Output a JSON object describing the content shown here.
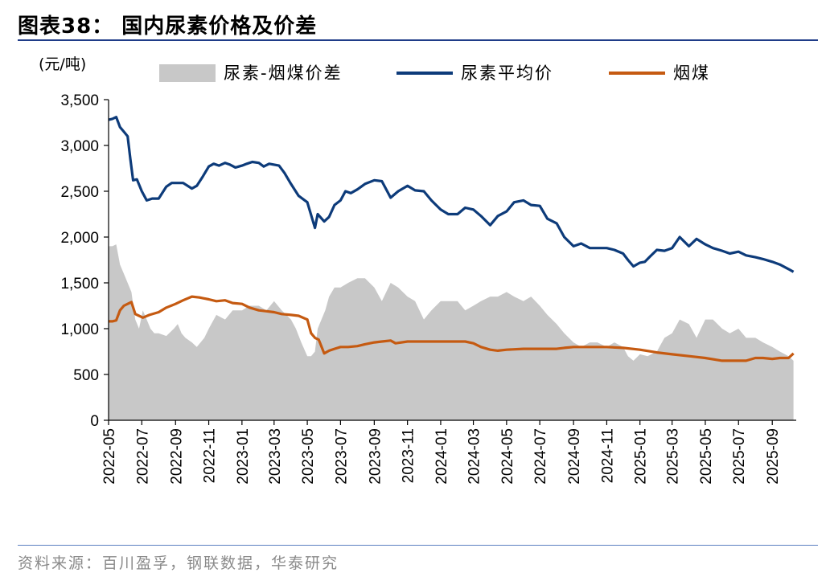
{
  "title": "图表38： 国内尿素价格及价差",
  "source": "资料来源：百川盈孚，钢联数据，华泰研究",
  "colors": {
    "spread": "#c8c8c8",
    "urea": "#0d3b7a",
    "coal": "#c55a11",
    "rule": "#1f3c88"
  },
  "chart_data": {
    "type": "line",
    "ylabel": "(元/吨)",
    "ylim": [
      0,
      3500
    ],
    "yticks": [
      0,
      500,
      1000,
      1500,
      2000,
      2500,
      3000,
      3500
    ],
    "ytick_labels": [
      "0",
      "500",
      "1,000",
      "1,500",
      "2,000",
      "2,500",
      "3,000",
      "3,500"
    ],
    "xlim": [
      "2022-05-01",
      "2025-10-15"
    ],
    "xtick_labels": [
      "2022-05",
      "2022-07",
      "2022-09",
      "2022-11",
      "2023-01",
      "2023-03",
      "2023-05",
      "2023-07",
      "2023-09",
      "2023-11",
      "2024-01",
      "2024-03",
      "2024-05",
      "2024-07",
      "2024-09",
      "2024-11",
      "2025-01",
      "2025-03",
      "2025-05",
      "2025-07",
      "2025-09"
    ],
    "legend_position": "top",
    "series": [
      {
        "name": "尿素-烟煤价差",
        "kind": "area",
        "x": [
          "2022-05-01",
          "2022-05-08",
          "2022-05-15",
          "2022-05-22",
          "2022-05-29",
          "2022-06-05",
          "2022-06-12",
          "2022-06-19",
          "2022-06-26",
          "2022-07-03",
          "2022-07-10",
          "2022-07-17",
          "2022-07-24",
          "2022-08-01",
          "2022-08-15",
          "2022-08-29",
          "2022-09-05",
          "2022-09-12",
          "2022-09-19",
          "2022-10-01",
          "2022-10-10",
          "2022-10-17",
          "2022-10-24",
          "2022-11-01",
          "2022-11-15",
          "2022-12-01",
          "2022-12-15",
          "2023-01-01",
          "2023-01-15",
          "2023-02-01",
          "2023-02-15",
          "2023-03-01",
          "2023-03-15",
          "2023-04-01",
          "2023-04-10",
          "2023-04-20",
          "2023-05-01",
          "2023-05-08",
          "2023-05-15",
          "2023-05-20",
          "2023-05-27",
          "2023-06-03",
          "2023-06-10",
          "2023-06-20",
          "2023-07-01",
          "2023-07-15",
          "2023-08-01",
          "2023-08-15",
          "2023-09-01",
          "2023-09-15",
          "2023-10-01",
          "2023-10-15",
          "2023-11-01",
          "2023-11-15",
          "2023-12-01",
          "2023-12-15",
          "2024-01-01",
          "2024-01-15",
          "2024-02-01",
          "2024-02-15",
          "2024-03-01",
          "2024-03-15",
          "2024-04-01",
          "2024-04-15",
          "2024-05-01",
          "2024-05-15",
          "2024-06-01",
          "2024-06-15",
          "2024-07-01",
          "2024-07-15",
          "2024-08-01",
          "2024-08-15",
          "2024-09-01",
          "2024-09-15",
          "2024-10-01",
          "2024-10-15",
          "2024-11-01",
          "2024-11-15",
          "2024-12-01",
          "2024-12-10",
          "2024-12-20",
          "2025-01-01",
          "2025-01-15",
          "2025-02-01",
          "2025-02-15",
          "2025-03-01",
          "2025-03-15",
          "2025-04-01",
          "2025-04-15",
          "2025-05-01",
          "2025-05-15",
          "2025-06-01",
          "2025-06-15",
          "2025-07-01",
          "2025-07-15",
          "2025-08-01",
          "2025-08-15",
          "2025-09-01",
          "2025-09-15",
          "2025-10-01",
          "2025-10-10"
        ],
        "y": [
          1900,
          1900,
          1920,
          1700,
          1600,
          1500,
          1400,
          1100,
          1000,
          1200,
          1100,
          1000,
          950,
          950,
          920,
          1000,
          1050,
          950,
          900,
          850,
          800,
          850,
          900,
          1000,
          1150,
          1100,
          1200,
          1200,
          1250,
          1250,
          1200,
          1300,
          1200,
          1100,
          1000,
          850,
          700,
          700,
          750,
          1000,
          1100,
          1200,
          1350,
          1450,
          1450,
          1500,
          1550,
          1550,
          1450,
          1300,
          1500,
          1450,
          1350,
          1300,
          1100,
          1200,
          1300,
          1300,
          1300,
          1200,
          1250,
          1300,
          1350,
          1350,
          1400,
          1350,
          1300,
          1350,
          1250,
          1150,
          1050,
          950,
          850,
          800,
          850,
          850,
          800,
          850,
          800,
          700,
          650,
          720,
          700,
          750,
          900,
          950,
          1100,
          1050,
          900,
          1100,
          1100,
          1000,
          950,
          1000,
          900,
          900,
          850,
          800,
          750,
          700,
          650
        ]
      },
      {
        "name": "尿素平均价",
        "kind": "line",
        "x": [
          "2022-05-01",
          "2022-05-08",
          "2022-05-15",
          "2022-05-22",
          "2022-05-29",
          "2022-06-05",
          "2022-06-10",
          "2022-06-15",
          "2022-06-22",
          "2022-07-01",
          "2022-07-10",
          "2022-07-20",
          "2022-08-01",
          "2022-08-15",
          "2022-08-25",
          "2022-09-05",
          "2022-09-15",
          "2022-10-01",
          "2022-10-10",
          "2022-10-20",
          "2022-11-01",
          "2022-11-10",
          "2022-11-20",
          "2022-12-01",
          "2022-12-10",
          "2022-12-20",
          "2023-01-01",
          "2023-01-10",
          "2023-01-20",
          "2023-02-01",
          "2023-02-10",
          "2023-02-20",
          "2023-03-01",
          "2023-03-10",
          "2023-03-20",
          "2023-04-01",
          "2023-04-15",
          "2023-05-01",
          "2023-05-10",
          "2023-05-15",
          "2023-05-20",
          "2023-06-01",
          "2023-06-10",
          "2023-06-20",
          "2023-07-01",
          "2023-07-10",
          "2023-07-20",
          "2023-08-01",
          "2023-08-15",
          "2023-09-01",
          "2023-09-15",
          "2023-10-01",
          "2023-10-15",
          "2023-11-01",
          "2023-11-15",
          "2023-12-01",
          "2023-12-15",
          "2024-01-01",
          "2024-01-15",
          "2024-02-01",
          "2024-02-15",
          "2024-03-01",
          "2024-03-15",
          "2024-04-01",
          "2024-04-15",
          "2024-05-01",
          "2024-05-15",
          "2024-06-01",
          "2024-06-15",
          "2024-07-01",
          "2024-07-15",
          "2024-08-01",
          "2024-08-15",
          "2024-09-01",
          "2024-09-15",
          "2024-10-01",
          "2024-10-15",
          "2024-11-01",
          "2024-11-15",
          "2024-12-01",
          "2024-12-10",
          "2024-12-20",
          "2025-01-01",
          "2025-01-10",
          "2025-01-20",
          "2025-02-01",
          "2025-02-15",
          "2025-03-01",
          "2025-03-15",
          "2025-04-01",
          "2025-04-15",
          "2025-05-01",
          "2025-05-15",
          "2025-06-01",
          "2025-06-15",
          "2025-07-01",
          "2025-07-15",
          "2025-08-01",
          "2025-08-15",
          "2025-09-01",
          "2025-09-15",
          "2025-10-01",
          "2025-10-10"
        ],
        "y": [
          3280,
          3290,
          3310,
          3200,
          3150,
          3100,
          2850,
          2620,
          2630,
          2500,
          2400,
          2420,
          2420,
          2550,
          2590,
          2590,
          2590,
          2530,
          2560,
          2650,
          2770,
          2800,
          2780,
          2810,
          2790,
          2760,
          2780,
          2800,
          2820,
          2810,
          2770,
          2800,
          2790,
          2780,
          2700,
          2580,
          2450,
          2380,
          2200,
          2100,
          2250,
          2170,
          2220,
          2350,
          2400,
          2500,
          2480,
          2520,
          2580,
          2620,
          2610,
          2430,
          2500,
          2560,
          2510,
          2500,
          2400,
          2300,
          2250,
          2250,
          2320,
          2300,
          2230,
          2130,
          2230,
          2280,
          2380,
          2400,
          2350,
          2340,
          2200,
          2150,
          2000,
          1900,
          1930,
          1880,
          1880,
          1880,
          1860,
          1820,
          1750,
          1680,
          1720,
          1730,
          1790,
          1860,
          1850,
          1880,
          2000,
          1900,
          1980,
          1920,
          1880,
          1850,
          1820,
          1840,
          1800,
          1780,
          1760,
          1730,
          1700,
          1650,
          1620
        ]
      },
      {
        "name": "烟煤",
        "kind": "line",
        "x": [
          "2022-05-01",
          "2022-05-08",
          "2022-05-15",
          "2022-05-22",
          "2022-05-29",
          "2022-06-05",
          "2022-06-12",
          "2022-06-19",
          "2022-06-26",
          "2022-07-03",
          "2022-07-15",
          "2022-08-01",
          "2022-08-15",
          "2022-09-01",
          "2022-09-15",
          "2022-10-01",
          "2022-10-15",
          "2022-11-01",
          "2022-11-15",
          "2022-12-01",
          "2022-12-15",
          "2023-01-01",
          "2023-01-15",
          "2023-02-01",
          "2023-02-15",
          "2023-03-01",
          "2023-03-15",
          "2023-04-01",
          "2023-04-15",
          "2023-05-01",
          "2023-05-08",
          "2023-05-15",
          "2023-05-22",
          "2023-06-01",
          "2023-06-10",
          "2023-06-20",
          "2023-07-01",
          "2023-07-15",
          "2023-08-01",
          "2023-08-15",
          "2023-09-01",
          "2023-09-15",
          "2023-10-01",
          "2023-10-10",
          "2023-11-01",
          "2023-11-15",
          "2023-12-01",
          "2023-12-15",
          "2024-01-01",
          "2024-01-15",
          "2024-02-01",
          "2024-02-15",
          "2024-03-01",
          "2024-03-15",
          "2024-04-01",
          "2024-04-15",
          "2024-05-01",
          "2024-06-01",
          "2024-07-01",
          "2024-08-01",
          "2024-08-15",
          "2024-09-01",
          "2024-10-01",
          "2024-11-01",
          "2024-12-01",
          "2025-01-01",
          "2025-02-01",
          "2025-03-01",
          "2025-04-01",
          "2025-05-01",
          "2025-06-01",
          "2025-07-01",
          "2025-07-15",
          "2025-08-01",
          "2025-08-15",
          "2025-09-01",
          "2025-09-15",
          "2025-10-01",
          "2025-10-10"
        ],
        "y": [
          1080,
          1080,
          1090,
          1200,
          1250,
          1270,
          1290,
          1160,
          1140,
          1120,
          1150,
          1180,
          1230,
          1270,
          1310,
          1350,
          1340,
          1320,
          1300,
          1310,
          1280,
          1270,
          1230,
          1200,
          1190,
          1180,
          1160,
          1150,
          1140,
          1100,
          950,
          900,
          880,
          730,
          760,
          780,
          800,
          800,
          810,
          830,
          850,
          860,
          870,
          840,
          860,
          860,
          860,
          860,
          860,
          860,
          860,
          860,
          840,
          800,
          770,
          760,
          770,
          780,
          780,
          780,
          790,
          800,
          800,
          800,
          790,
          770,
          740,
          720,
          700,
          680,
          650,
          650,
          650,
          680,
          680,
          670,
          680,
          680,
          730
        ]
      }
    ]
  }
}
